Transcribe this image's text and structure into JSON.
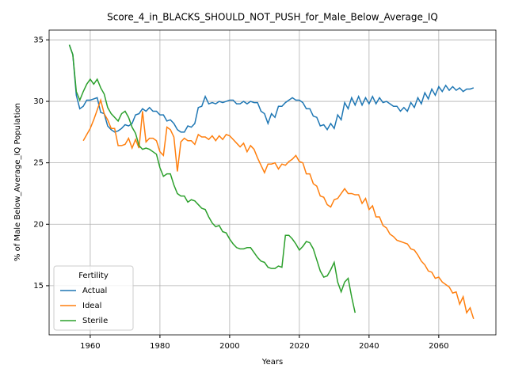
{
  "chart_data": {
    "type": "line",
    "title": "Score_4_in_BLACKS_SHOULD_NOT_PUSH_for_Male_Below_Average_IQ",
    "xlabel": "Years",
    "ylabel": "% of Male Below_Average_IQ Population",
    "legend_title": "Fertility",
    "legend": "lower left",
    "grid": true,
    "xlim": [
      1948.2,
      2076.4
    ],
    "ylim": [
      11.0,
      35.8
    ],
    "xticks": [
      1960,
      1980,
      2000,
      2020,
      2040,
      2060
    ],
    "yticks": [
      15,
      20,
      25,
      30,
      35
    ],
    "x": [
      1954,
      1955,
      1956,
      1957,
      1958,
      1959,
      1960,
      1961,
      1962,
      1963,
      1964,
      1965,
      1966,
      1967,
      1968,
      1969,
      1970,
      1971,
      1972,
      1973,
      1974,
      1975,
      1976,
      1977,
      1978,
      1979,
      1980,
      1981,
      1982,
      1983,
      1984,
      1985,
      1986,
      1987,
      1988,
      1989,
      1990,
      1991,
      1992,
      1993,
      1994,
      1995,
      1996,
      1997,
      1998,
      1999,
      2000,
      2001,
      2002,
      2003,
      2004,
      2005,
      2006,
      2007,
      2008,
      2009,
      2010,
      2011,
      2012,
      2013,
      2014,
      2015,
      2016,
      2017,
      2018,
      2019,
      2020,
      2021,
      2022,
      2023,
      2024,
      2025,
      2026,
      2027,
      2028,
      2029,
      2030,
      2031,
      2032,
      2033,
      2034,
      2035,
      2036,
      2037,
      2038,
      2039,
      2040,
      2041,
      2042,
      2043,
      2044,
      2045,
      2046,
      2047,
      2048,
      2049,
      2050,
      2051,
      2052,
      2053,
      2054,
      2055,
      2056,
      2057,
      2058,
      2059,
      2060,
      2061,
      2062,
      2063,
      2064,
      2065,
      2066,
      2067,
      2068,
      2069,
      2070
    ],
    "series": [
      {
        "name": "Actual",
        "color": "#1f77b4",
        "values": [
          34.6,
          33.8,
          30.5,
          29.4,
          29.6,
          30.1,
          30.1,
          30.2,
          30.3,
          29.1,
          29.0,
          28.0,
          27.7,
          27.5,
          27.6,
          27.8,
          28.1,
          28.0,
          28.2,
          28.9,
          29.0,
          29.4,
          29.2,
          29.5,
          29.2,
          29.2,
          28.9,
          28.9,
          28.4,
          28.5,
          28.2,
          27.7,
          27.5,
          27.5,
          28.0,
          27.9,
          28.2,
          29.5,
          29.6,
          30.4,
          29.8,
          29.9,
          29.8,
          30.0,
          29.9,
          30.0,
          30.1,
          30.1,
          29.8,
          29.8,
          30.0,
          29.8,
          30.0,
          29.9,
          29.9,
          29.2,
          29.0,
          28.2,
          29.0,
          28.7,
          29.6,
          29.6,
          29.9,
          30.1,
          30.3,
          30.1,
          30.1,
          29.9,
          29.4,
          29.4,
          28.8,
          28.7,
          28.0,
          28.1,
          27.7,
          28.2,
          27.8,
          28.9,
          28.5,
          29.9,
          29.4,
          30.3,
          29.7,
          30.4,
          29.7,
          30.3,
          29.8,
          30.4,
          29.8,
          30.3,
          29.9,
          30.0,
          29.8,
          29.6,
          29.6,
          29.2,
          29.5,
          29.2,
          29.9,
          29.5,
          30.3,
          29.8,
          30.7,
          30.2,
          31.0,
          30.5,
          31.2,
          30.8,
          31.3,
          30.9,
          31.2,
          30.9,
          31.1,
          30.8,
          31.0,
          31.0,
          31.1
        ]
      },
      {
        "name": "Ideal",
        "color": "#ff7f0e",
        "values": [
          null,
          null,
          null,
          null,
          26.8,
          27.3,
          27.8,
          28.5,
          29.3,
          30.1,
          29.0,
          28.5,
          27.8,
          27.8,
          26.4,
          26.4,
          26.5,
          27.0,
          26.2,
          26.9,
          26.2,
          29.2,
          26.7,
          27.0,
          27.0,
          26.8,
          25.9,
          25.6,
          27.9,
          27.7,
          27.1,
          24.3,
          26.7,
          27.0,
          26.8,
          26.8,
          26.5,
          27.3,
          27.1,
          27.1,
          26.9,
          27.2,
          26.8,
          27.2,
          26.9,
          27.3,
          27.2,
          26.9,
          26.6,
          26.3,
          26.6,
          25.9,
          26.4,
          26.1,
          25.4,
          24.8,
          24.2,
          24.9,
          24.9,
          25.0,
          24.5,
          24.9,
          24.8,
          25.1,
          25.3,
          25.6,
          25.1,
          25.0,
          24.1,
          24.1,
          23.3,
          23.1,
          22.3,
          22.2,
          21.6,
          21.4,
          22.0,
          22.1,
          22.5,
          22.9,
          22.5,
          22.5,
          22.4,
          22.4,
          21.7,
          22.1,
          21.2,
          21.5,
          20.6,
          20.6,
          19.9,
          19.7,
          19.2,
          19.0,
          18.7,
          18.6,
          18.5,
          18.4,
          18.0,
          17.9,
          17.5,
          17.0,
          16.7,
          16.2,
          16.1,
          15.6,
          15.7,
          15.3,
          15.1,
          14.9,
          14.4,
          14.5,
          13.5,
          14.1,
          12.8,
          13.2,
          12.3
        ]
      },
      {
        "name": "Sterile",
        "color": "#2ca02c",
        "values": [
          34.6,
          33.8,
          30.8,
          30.1,
          30.8,
          31.4,
          31.8,
          31.4,
          31.8,
          31.1,
          30.6,
          29.5,
          29.0,
          28.7,
          28.4,
          29.0,
          29.2,
          28.7,
          27.9,
          27.4,
          26.4,
          26.1,
          26.2,
          26.1,
          25.9,
          25.7,
          24.6,
          23.9,
          24.1,
          24.1,
          23.2,
          22.5,
          22.3,
          22.3,
          21.8,
          22.0,
          21.9,
          21.6,
          21.3,
          21.2,
          20.6,
          20.1,
          19.8,
          19.9,
          19.4,
          19.3,
          18.8,
          18.4,
          18.1,
          18.0,
          18.0,
          18.1,
          18.1,
          17.7,
          17.3,
          17.0,
          16.9,
          16.5,
          16.4,
          16.4,
          16.6,
          16.5,
          19.1,
          19.1,
          18.8,
          18.4,
          17.9,
          18.2,
          18.6,
          18.5,
          18.0,
          17.1,
          16.2,
          15.7,
          15.8,
          16.3,
          16.9,
          15.3,
          14.5,
          15.3,
          15.6,
          14.1,
          12.8,
          null,
          null,
          null,
          null,
          null,
          null,
          null,
          null,
          null,
          null,
          null,
          null,
          null,
          null,
          null,
          null,
          null,
          null,
          null,
          null,
          null,
          null,
          null,
          null,
          null,
          null,
          null,
          null,
          null,
          null,
          null,
          null,
          null,
          null
        ]
      }
    ]
  }
}
